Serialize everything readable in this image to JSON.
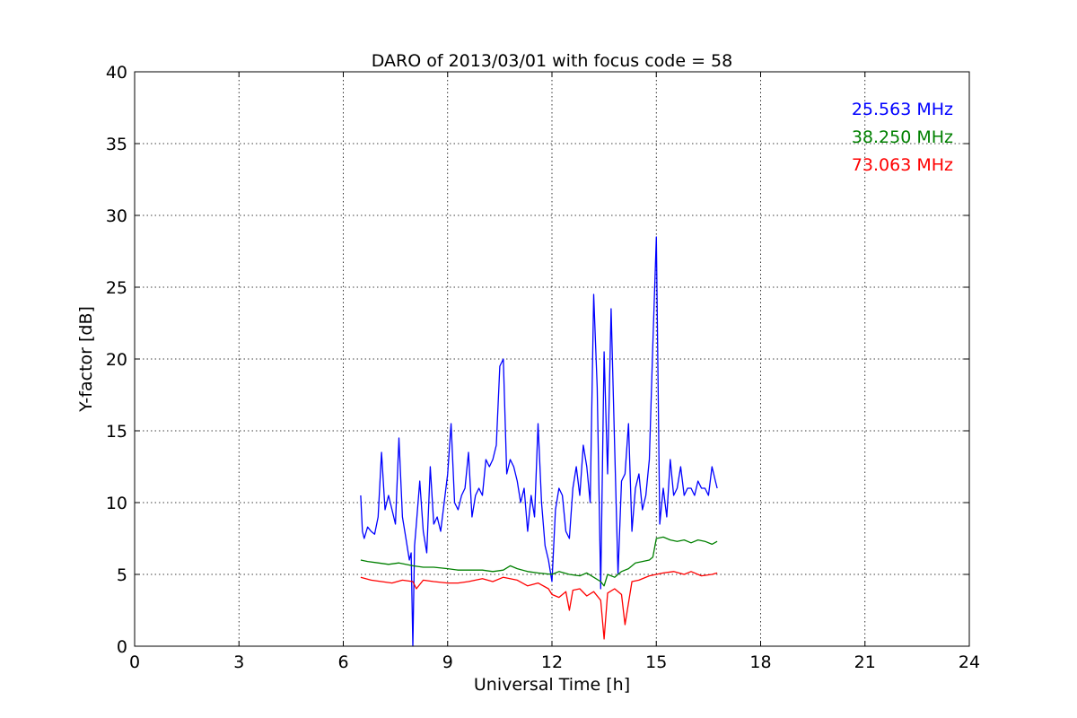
{
  "chart_data": {
    "type": "line",
    "title": "DARO of 2013/03/01 with focus code = 58",
    "xlabel": "Universal Time [h]",
    "ylabel": "Y-factor [dB]",
    "xlim": [
      0,
      24
    ],
    "ylim": [
      0,
      40
    ],
    "x_ticks": [
      0,
      3,
      6,
      9,
      12,
      15,
      18,
      21,
      24
    ],
    "y_ticks": [
      0,
      5,
      10,
      15,
      20,
      25,
      30,
      35,
      40
    ],
    "grid": true,
    "legend_position": "top-right",
    "series": [
      {
        "name": "25.563 MHz",
        "color": "#0000ff",
        "x": [
          6.5,
          6.55,
          6.6,
          6.7,
          6.8,
          6.9,
          7.0,
          7.1,
          7.2,
          7.3,
          7.4,
          7.5,
          7.6,
          7.7,
          7.8,
          7.9,
          7.95,
          8.0,
          8.05,
          8.1,
          8.2,
          8.3,
          8.4,
          8.5,
          8.6,
          8.7,
          8.8,
          8.9,
          9.0,
          9.1,
          9.2,
          9.3,
          9.4,
          9.5,
          9.6,
          9.7,
          9.8,
          9.9,
          10.0,
          10.1,
          10.2,
          10.3,
          10.4,
          10.5,
          10.6,
          10.7,
          10.8,
          10.9,
          11.0,
          11.1,
          11.2,
          11.3,
          11.4,
          11.5,
          11.6,
          11.7,
          11.8,
          11.9,
          12.0,
          12.1,
          12.2,
          12.3,
          12.4,
          12.5,
          12.6,
          12.7,
          12.8,
          12.9,
          13.0,
          13.1,
          13.2,
          13.3,
          13.4,
          13.5,
          13.6,
          13.7,
          13.8,
          13.9,
          14.0,
          14.1,
          14.2,
          14.3,
          14.4,
          14.5,
          14.6,
          14.7,
          14.8,
          14.9,
          15.0,
          15.1,
          15.2,
          15.3,
          15.4,
          15.5,
          15.6,
          15.7,
          15.8,
          15.9,
          16.0,
          16.1,
          16.2,
          16.3,
          16.4,
          16.5,
          16.6,
          16.7,
          16.75
        ],
        "y": [
          10.5,
          8.0,
          7.5,
          8.3,
          8.0,
          7.8,
          9.0,
          13.5,
          9.5,
          10.5,
          9.5,
          8.5,
          14.5,
          9.0,
          7.5,
          6.0,
          6.5,
          0.0,
          7.0,
          8.5,
          11.5,
          8.0,
          6.5,
          12.5,
          8.5,
          9.0,
          8.0,
          10.0,
          12.0,
          15.5,
          10.0,
          9.5,
          10.5,
          11.0,
          13.5,
          9.0,
          10.5,
          11.0,
          10.5,
          13.0,
          12.5,
          13.0,
          14.0,
          19.5,
          20.0,
          12.0,
          13.0,
          12.5,
          11.5,
          10.0,
          11.0,
          8.0,
          10.5,
          9.0,
          15.5,
          10.0,
          7.0,
          6.0,
          4.5,
          9.5,
          11.0,
          10.5,
          8.0,
          7.5,
          11.0,
          12.5,
          10.5,
          14.0,
          12.5,
          10.0,
          24.5,
          18.0,
          4.0,
          20.5,
          12.0,
          23.5,
          14.0,
          5.0,
          11.5,
          12.0,
          15.5,
          8.0,
          11.0,
          12.0,
          9.5,
          10.5,
          13.0,
          21.0,
          28.5,
          8.5,
          11.0,
          9.0,
          13.0,
          10.5,
          11.0,
          12.5,
          10.5,
          11.0,
          11.0,
          10.5,
          11.5,
          11.0,
          11.0,
          10.5,
          12.5,
          11.5,
          11.0
        ]
      },
      {
        "name": "38.250 MHz",
        "color": "#008000",
        "x": [
          6.5,
          6.7,
          7.0,
          7.3,
          7.6,
          8.0,
          8.3,
          8.6,
          9.0,
          9.3,
          9.6,
          10.0,
          10.3,
          10.6,
          10.8,
          11.0,
          11.3,
          11.6,
          12.0,
          12.2,
          12.5,
          12.8,
          13.0,
          13.2,
          13.4,
          13.5,
          13.6,
          13.8,
          14.0,
          14.2,
          14.4,
          14.6,
          14.8,
          14.9,
          15.0,
          15.2,
          15.4,
          15.6,
          15.8,
          16.0,
          16.2,
          16.4,
          16.6,
          16.75
        ],
        "y": [
          6.0,
          5.9,
          5.8,
          5.7,
          5.8,
          5.6,
          5.5,
          5.5,
          5.4,
          5.3,
          5.3,
          5.3,
          5.2,
          5.3,
          5.6,
          5.4,
          5.2,
          5.1,
          5.0,
          5.2,
          5.0,
          4.9,
          5.1,
          4.8,
          4.5,
          4.2,
          5.0,
          4.8,
          5.2,
          5.4,
          5.8,
          5.9,
          6.0,
          6.2,
          7.5,
          7.6,
          7.4,
          7.3,
          7.4,
          7.2,
          7.4,
          7.3,
          7.1,
          7.3
        ]
      },
      {
        "name": "73.063 MHz",
        "color": "#ff0000",
        "x": [
          6.5,
          6.8,
          7.1,
          7.4,
          7.7,
          8.0,
          8.1,
          8.3,
          8.6,
          9.0,
          9.3,
          9.6,
          10.0,
          10.3,
          10.6,
          11.0,
          11.3,
          11.6,
          11.9,
          12.0,
          12.2,
          12.4,
          12.5,
          12.6,
          12.8,
          13.0,
          13.2,
          13.4,
          13.5,
          13.6,
          13.8,
          14.0,
          14.1,
          14.3,
          14.5,
          14.8,
          15.0,
          15.2,
          15.5,
          15.8,
          16.0,
          16.3,
          16.6,
          16.75
        ],
        "y": [
          4.8,
          4.6,
          4.5,
          4.4,
          4.6,
          4.5,
          4.0,
          4.6,
          4.5,
          4.4,
          4.4,
          4.5,
          4.7,
          4.5,
          4.8,
          4.6,
          4.2,
          4.4,
          4.0,
          3.6,
          3.4,
          3.8,
          2.5,
          3.9,
          4.0,
          3.5,
          3.8,
          3.2,
          0.5,
          3.7,
          4.0,
          3.6,
          1.5,
          4.5,
          4.6,
          4.9,
          5.0,
          5.1,
          5.2,
          5.0,
          5.2,
          4.9,
          5.0,
          5.1
        ]
      }
    ]
  }
}
